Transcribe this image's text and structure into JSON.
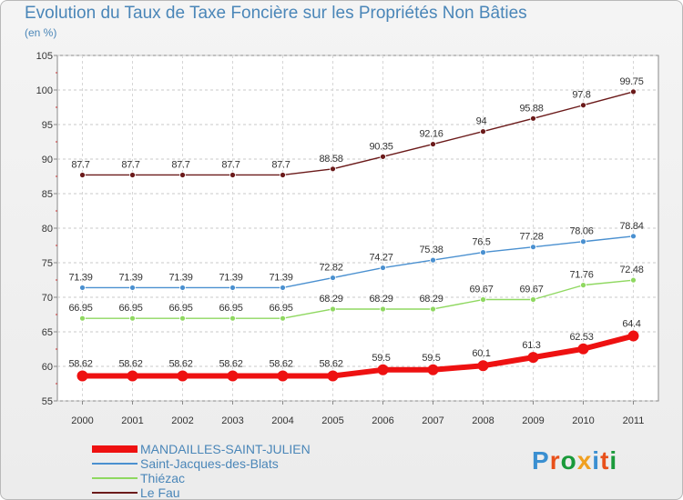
{
  "title": "Evolution du Taux de Taxe Foncière sur les Propriétés Non Bâties",
  "unit": "(en %)",
  "logo": {
    "text": "Proxiti",
    "colors": [
      "#3a8fd1",
      "#e8501a",
      "#1a9a3a",
      "#f0a020",
      "#3a8fd1",
      "#e8501a",
      "#1a9a3a"
    ]
  },
  "chart_data": {
    "type": "line",
    "title": "Evolution du Taux de Taxe Foncière sur les Propriétés Non Bâties",
    "ylabel": "(en %)",
    "xlabel": "",
    "x": [
      "2000",
      "2001",
      "2002",
      "2003",
      "2004",
      "2005",
      "2006",
      "2007",
      "2008",
      "2009",
      "2010",
      "2011"
    ],
    "ylim": [
      55,
      105
    ],
    "yticks": [
      55,
      60,
      65,
      70,
      75,
      80,
      85,
      90,
      95,
      100,
      105
    ],
    "grid": true,
    "legend_position": "bottom-left",
    "series": [
      {
        "name": "Le Fau",
        "color": "#6b1a1a",
        "values": [
          87.7,
          87.7,
          87.7,
          87.7,
          87.7,
          88.58,
          90.35,
          92.16,
          94,
          95.88,
          97.8,
          99.75
        ],
        "labels": [
          "87.7",
          "87.7",
          "87.7",
          "87.7",
          "87.7",
          "88.58",
          "90.35",
          "92.16",
          "94",
          "95.88",
          "97.8",
          "99.75"
        ]
      },
      {
        "name": "Saint-Jacques-des-Blats",
        "color": "#4a90d0",
        "values": [
          71.39,
          71.39,
          71.39,
          71.39,
          71.39,
          72.82,
          74.27,
          75.38,
          76.5,
          77.28,
          78.06,
          78.84
        ],
        "labels": [
          "71.39",
          "71.39",
          "71.39",
          "71.39",
          "71.39",
          "72.82",
          "74.27",
          "75.38",
          "76.5",
          "77.28",
          "78.06",
          "78.84"
        ]
      },
      {
        "name": "Thiézac",
        "color": "#8fd860",
        "values": [
          66.95,
          66.95,
          66.95,
          66.95,
          66.95,
          68.29,
          68.29,
          68.29,
          69.67,
          69.67,
          71.76,
          72.48
        ],
        "labels": [
          "66.95",
          "66.95",
          "66.95",
          "66.95",
          "66.95",
          "68.29",
          "68.29",
          "68.29",
          "69.67",
          "69.67",
          "71.76",
          "72.48"
        ]
      },
      {
        "name": "MANDAILLES-SAINT-JULIEN",
        "color": "#ee1111",
        "values": [
          58.62,
          58.62,
          58.62,
          58.62,
          58.62,
          58.62,
          59.5,
          59.5,
          60.1,
          61.3,
          62.53,
          64.4
        ],
        "labels": [
          "58.62",
          "58.62",
          "58.62",
          "58.62",
          "58.62",
          "58.62",
          "59.5",
          "59.5",
          "60.1",
          "61.3",
          "62.53",
          "64.4"
        ]
      }
    ],
    "legend_order": [
      "MANDAILLES-SAINT-JULIEN",
      "Saint-Jacques-des-Blats",
      "Thiézac",
      "Le Fau"
    ]
  }
}
